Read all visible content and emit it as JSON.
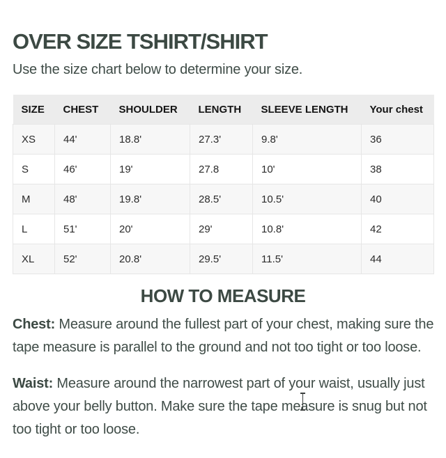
{
  "header": {
    "title": "OVER SIZE TSHIRT/SHIRT",
    "subtitle": "Use the size chart below to determine your size."
  },
  "size_chart": {
    "columns": [
      "SIZE",
      "CHEST",
      "SHOULDER",
      "LENGTH",
      "SLEEVE LENGTH",
      "Your chest"
    ],
    "rows": [
      [
        "XS",
        "44'",
        "18.8'",
        "27.3'",
        "9.8'",
        "36"
      ],
      [
        "S",
        "46'",
        "19'",
        "27.8",
        "10'",
        "38"
      ],
      [
        "M",
        "48'",
        "19.8'",
        "28.5'",
        "10.5'",
        "40"
      ],
      [
        "L",
        "51'",
        "20'",
        "29'",
        "10.8'",
        "42"
      ],
      [
        "XL",
        "52'",
        "20.8'",
        "29.5'",
        "11.5'",
        "44"
      ]
    ]
  },
  "how_to_measure": {
    "heading": "HOW TO MEASURE",
    "sections": [
      {
        "label": "Chest:",
        "text": " Measure around the fullest part of your chest, making sure the tape measure is parallel to the ground and not too tight or too loose."
      },
      {
        "label": "Waist:",
        "text": " Measure around the narrowest part of your waist, usually just above your belly button. Make sure the tape measure is snug but not too tight or too loose."
      }
    ]
  },
  "cursor": {
    "type": "i-beam-text-cursor"
  },
  "colors": {
    "heading_text": "#3c4943",
    "body_text": "#3f4c47",
    "table_header_bg": "#ececec",
    "table_row_alt_bg": "#f7f7f7",
    "table_border": "#e6e6e6",
    "table_text": "#2b2b2b"
  }
}
